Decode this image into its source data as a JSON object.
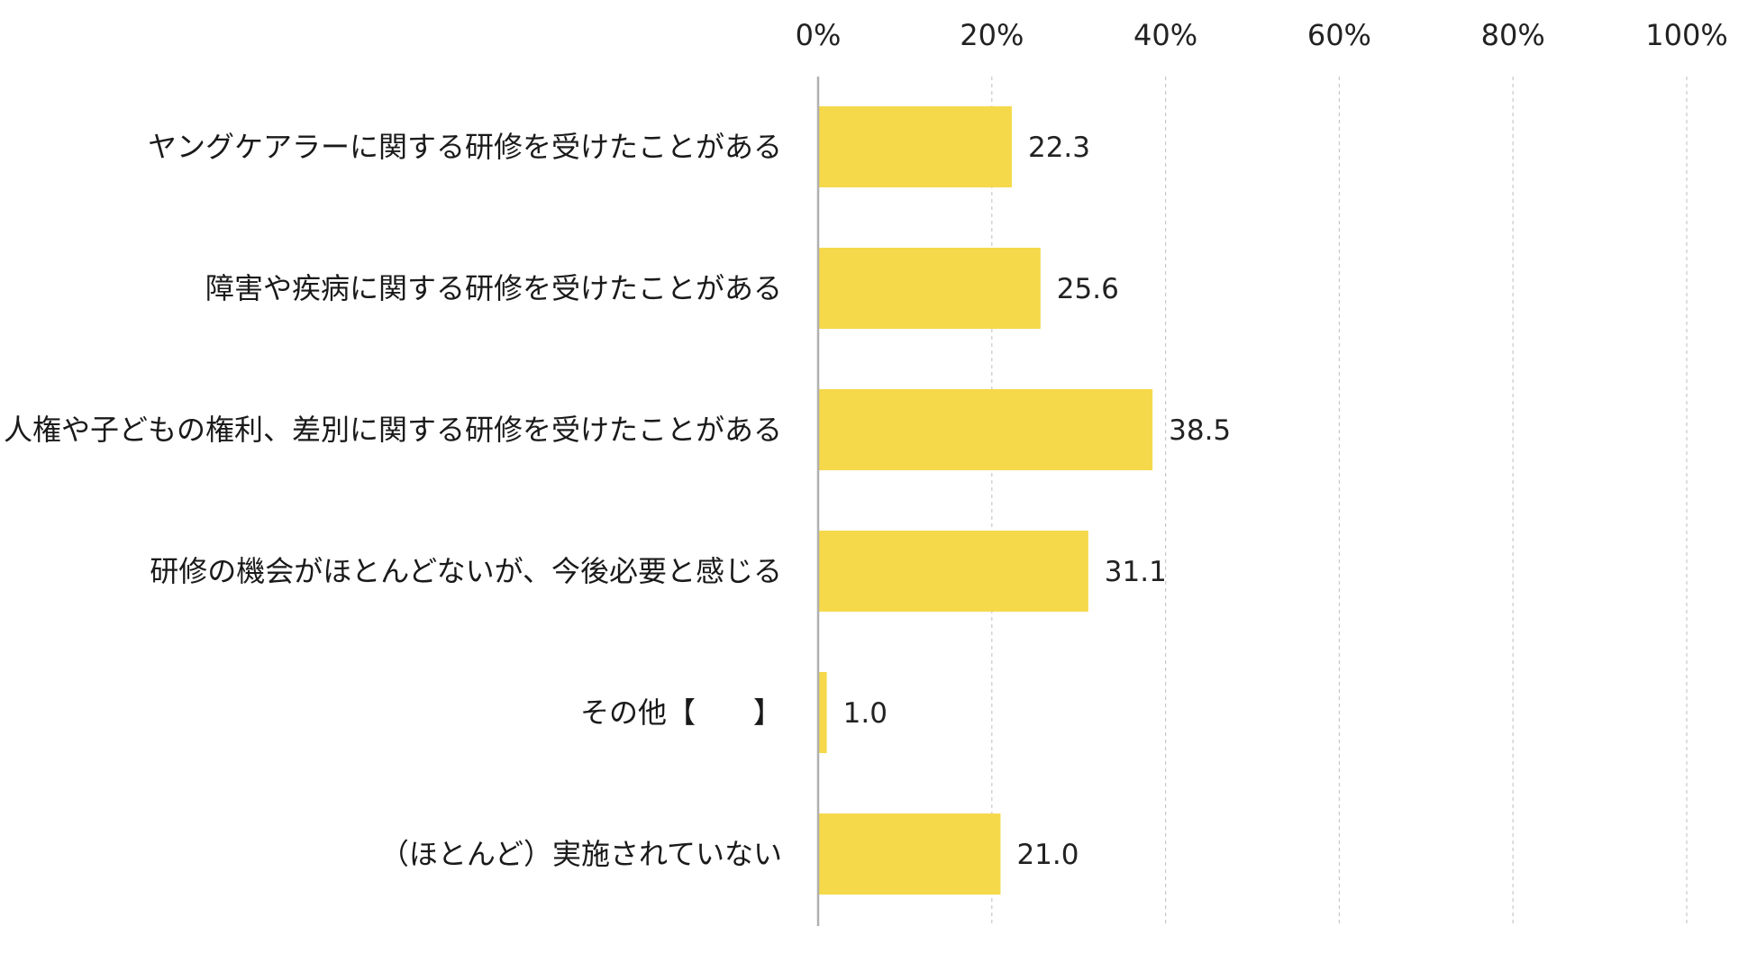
{
  "chart_data": {
    "type": "bar",
    "orientation": "horizontal",
    "categories": [
      "ヤングケアラーに関する研修を受けたことがある",
      "障害や疾病に関する研修を受けたことがある",
      "人権や子どもの権利、差別に関する研修を受けたことがある",
      "研修の機会がほとんどないが、今後必要と感じる",
      "その他【　　】",
      "（ほとんど）実施されていない"
    ],
    "values": [
      22.3,
      25.6,
      38.5,
      31.1,
      1.0,
      21.0
    ],
    "value_labels": [
      "22.3",
      "25.6",
      "38.5",
      "31.1",
      "1.0",
      "21.0"
    ],
    "xlim": [
      0,
      100
    ],
    "x_ticks": [
      0,
      20,
      40,
      60,
      80,
      100
    ],
    "x_tick_labels": [
      "0%",
      "20%",
      "40%",
      "60%",
      "80%",
      "100%"
    ],
    "x_axis_position": "top",
    "grid": "vertical-dashed",
    "legend": "none",
    "title": "",
    "xlabel": "",
    "ylabel": "",
    "colors": {
      "bar": "#F5D94B",
      "axis": "#b0b0b0",
      "grid": "#c8c8c8",
      "text": "#222222"
    }
  }
}
